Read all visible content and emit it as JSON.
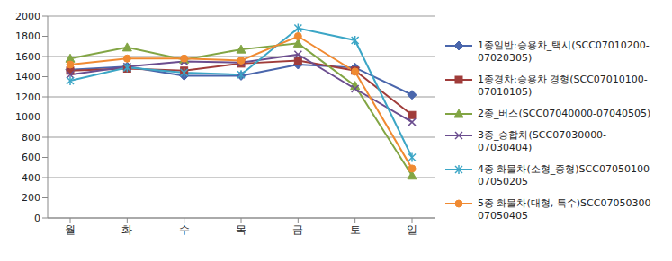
{
  "chart_data": {
    "type": "line",
    "categories": [
      "월",
      "화",
      "수",
      "목",
      "금",
      "토",
      "일"
    ],
    "series": [
      {
        "name": "1종일반:승용차_택시(SCC07010200-07020305)",
        "color": "#4a66ac",
        "marker": "diamond",
        "values": [
          1470,
          1500,
          1410,
          1410,
          1520,
          1490,
          1220
        ]
      },
      {
        "name": "1종경차:승용차 경형(SCC07010100-07010105)",
        "color": "#a03c3a",
        "marker": "square",
        "values": [
          1460,
          1480,
          1460,
          1530,
          1560,
          1460,
          1020
        ]
      },
      {
        "name": "2종_버스(SCC07040000-07040505)",
        "color": "#82a544",
        "marker": "triangle",
        "values": [
          1580,
          1690,
          1570,
          1670,
          1730,
          1310,
          420
        ]
      },
      {
        "name": "3종_승합차(SCC07030000-07030404)",
        "color": "#6b4d8f",
        "marker": "x",
        "values": [
          1420,
          1500,
          1550,
          1540,
          1620,
          1280,
          950
        ]
      },
      {
        "name": "4종 화물차(소형_중형)SCC07050100-07050205",
        "color": "#3ca6c6",
        "marker": "star",
        "values": [
          1360,
          1490,
          1440,
          1420,
          1880,
          1760,
          600
        ]
      },
      {
        "name": "5종 화물차(대형, 특수)SCC07050300-07050405",
        "color": "#f08a32",
        "marker": "circle",
        "values": [
          1520,
          1580,
          1580,
          1560,
          1800,
          1450,
          490
        ]
      }
    ],
    "ylim": [
      0,
      2000
    ],
    "yticks": [
      0,
      200,
      400,
      600,
      800,
      1000,
      1200,
      1400,
      1600,
      1800,
      2000
    ],
    "grid": true,
    "legend": "right"
  }
}
